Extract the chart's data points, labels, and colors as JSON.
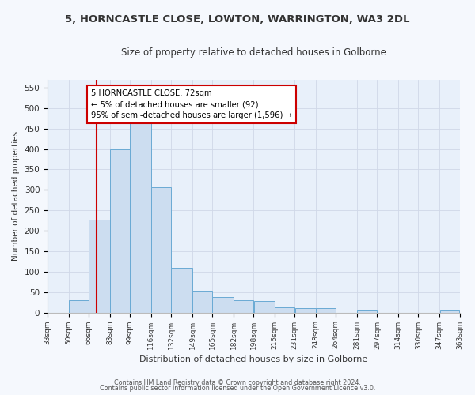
{
  "title": "5, HORNCASTLE CLOSE, LOWTON, WARRINGTON, WA3 2DL",
  "subtitle": "Size of property relative to detached houses in Golborne",
  "xlabel": "Distribution of detached houses by size in Golborne",
  "ylabel": "Number of detached properties",
  "bar_color": "#ccddf0",
  "bar_edge_color": "#6aaad4",
  "plot_bg_color": "#e8f0fa",
  "fig_bg_color": "#f5f8fd",
  "grid_color": "#d0d8e8",
  "vline_x": 72,
  "vline_color": "#cc0000",
  "annotation_text": "5 HORNCASTLE CLOSE: 72sqm\n← 5% of detached houses are smaller (92)\n95% of semi-detached houses are larger (1,596) →",
  "annotation_bbox_facecolor": "white",
  "annotation_bbox_edgecolor": "#cc0000",
  "bins": [
    33,
    50,
    66,
    83,
    99,
    116,
    132,
    149,
    165,
    182,
    198,
    215,
    231,
    248,
    264,
    281,
    297,
    314,
    330,
    347,
    363
  ],
  "bar_heights": [
    0,
    30,
    228,
    400,
    462,
    307,
    110,
    53,
    37,
    30,
    29,
    13,
    10,
    10,
    0,
    5,
    0,
    0,
    0,
    5
  ],
  "ylim": [
    0,
    570
  ],
  "yticks": [
    0,
    50,
    100,
    150,
    200,
    250,
    300,
    350,
    400,
    450,
    500,
    550
  ],
  "footer_line1": "Contains HM Land Registry data © Crown copyright and database right 2024.",
  "footer_line2": "Contains public sector information licensed under the Open Government Licence v3.0."
}
